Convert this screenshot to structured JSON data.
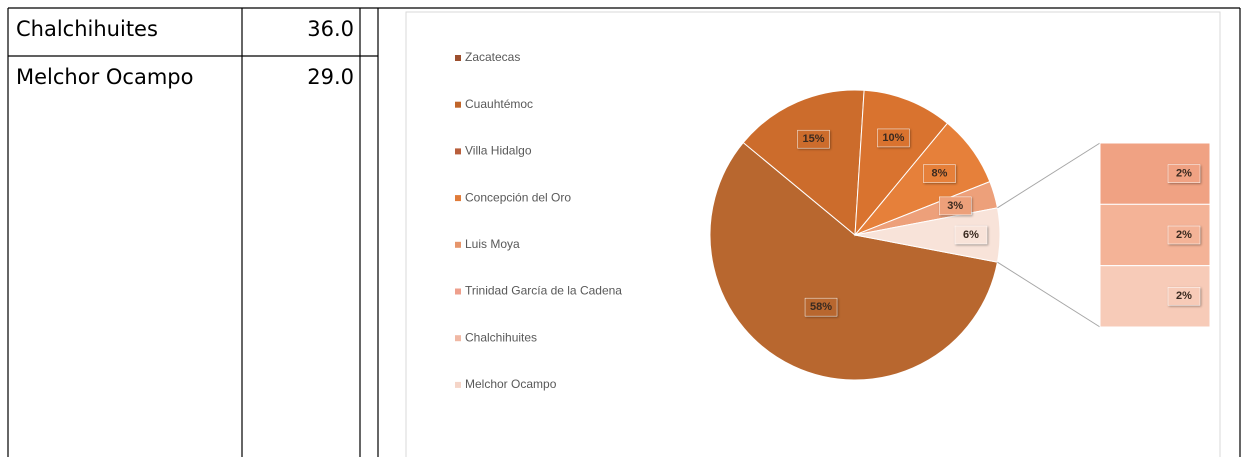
{
  "table": {
    "rows": [
      [
        "Chalchihuites",
        "36.0"
      ],
      [
        "Melchor Ocampo",
        "29.0"
      ]
    ]
  },
  "chart_data": {
    "type": "pie_of_pie",
    "categories": [
      "Zacatecas",
      "Cuauhtémoc",
      "Villa Hidalgo",
      "Concepción del Oro",
      "Luis Moya",
      "Trinidad García de la Cadena",
      "Chalchihuites",
      "Melchor Ocampo"
    ],
    "values": [
      58,
      15,
      10,
      8,
      3,
      2,
      2,
      2
    ],
    "value_labels": [
      "58%",
      "15%",
      "10%",
      "8%",
      "3%",
      "2%",
      "2%",
      "2%"
    ],
    "colors": [
      "#b8672f",
      "#cc6c2c",
      "#d9732f",
      "#e6803a",
      "#eda07a",
      "#f0a283",
      "#f4b397",
      "#f7cbb8"
    ],
    "legend_colors": [
      "#9c4f2e",
      "#c0652a",
      "#b85e3b",
      "#e07b39",
      "#e6956b",
      "#ee9f8c",
      "#f0b8a4",
      "#f5d5c8"
    ],
    "secondary_count": 3,
    "other_value": 6,
    "other_label": "6%",
    "other_color": "#f8e3d9",
    "legend": "left"
  }
}
